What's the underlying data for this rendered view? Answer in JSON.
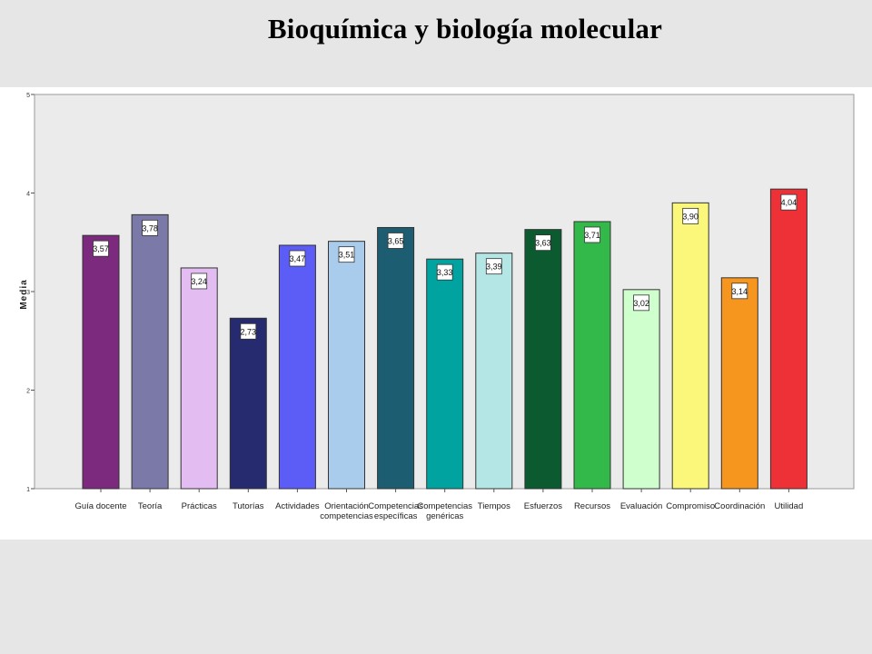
{
  "slide": {
    "title": "Bioquímica y biología molecular"
  },
  "chart_data": {
    "type": "bar",
    "ylabel": "Media",
    "xlabel": "",
    "ylim": [
      1,
      5
    ],
    "yticks": [
      1,
      2,
      3,
      4,
      5
    ],
    "grid": false,
    "categories": [
      [
        "Guía docente"
      ],
      [
        "Teoría"
      ],
      [
        "Prácticas"
      ],
      [
        "Tutorías"
      ],
      [
        "Actividades"
      ],
      [
        "Orientación",
        "competencias"
      ],
      [
        "Competencias",
        "específicas"
      ],
      [
        "Competencias",
        "genéricas"
      ],
      [
        "Tiempos"
      ],
      [
        "Esfuerzos"
      ],
      [
        "Recursos"
      ],
      [
        "Evaluación"
      ],
      [
        "Compromiso"
      ],
      [
        "Coordinación"
      ],
      [
        "Utilidad"
      ]
    ],
    "values": [
      3.57,
      3.78,
      3.24,
      2.73,
      3.47,
      3.51,
      3.65,
      3.33,
      3.39,
      3.63,
      3.71,
      3.02,
      3.9,
      3.14,
      4.04
    ],
    "value_labels": [
      "3,57",
      "3,78",
      "3,24",
      "2,73",
      "3,47",
      "3,51",
      "3,65",
      "3,33",
      "3,39",
      "3,63",
      "3,71",
      "3,02",
      "3,90",
      "3,14",
      "4,04"
    ],
    "colors": [
      "#7b2a7e",
      "#7a79a8",
      "#e3bdf2",
      "#262a6e",
      "#5c5cf6",
      "#a9cbec",
      "#1d5d72",
      "#00a3a0",
      "#b5e6e6",
      "#0b5a30",
      "#33b84a",
      "#ceffcd",
      "#fbf77a",
      "#f7961e",
      "#ee3137"
    ],
    "plot_background": "#ebebeb"
  }
}
